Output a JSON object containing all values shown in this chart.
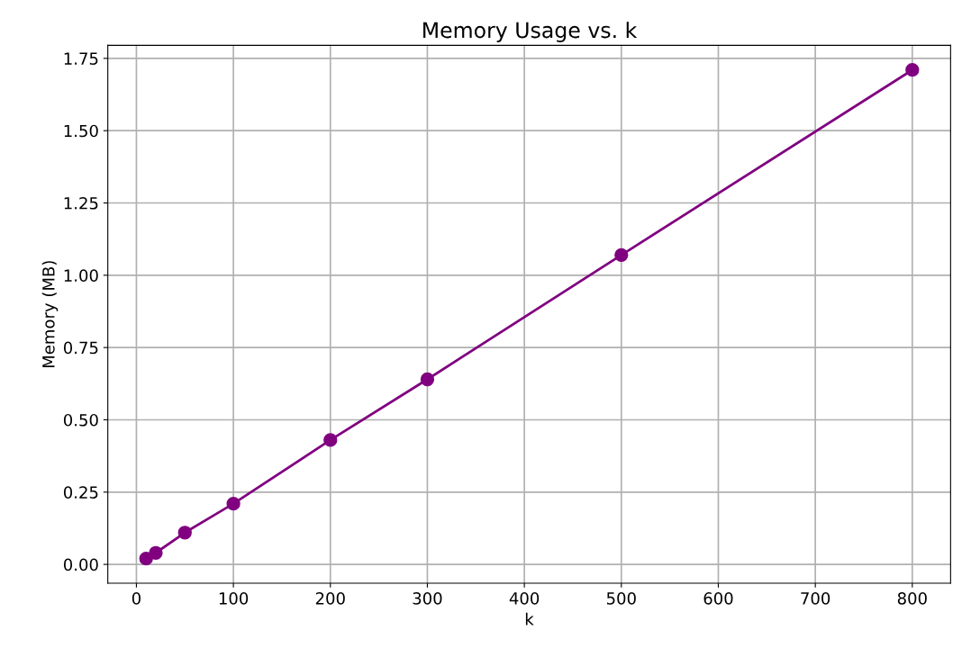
{
  "chart_data": {
    "type": "line",
    "title": "Memory Usage vs. k",
    "xlabel": "k",
    "ylabel": "Memory (MB)",
    "x": [
      10,
      20,
      50,
      100,
      200,
      300,
      500,
      800
    ],
    "series": [
      {
        "color": "#800080",
        "values": [
          0.02,
          0.04,
          0.11,
          0.21,
          0.43,
          0.64,
          1.07,
          1.71
        ]
      }
    ],
    "xlim": [
      -29.5,
      839.5
    ],
    "xticks": [
      0,
      100,
      200,
      300,
      400,
      500,
      600,
      700,
      800
    ],
    "ylim": [
      -0.065,
      1.795
    ],
    "yticks": [
      {
        "value": 0,
        "label": "0.00"
      },
      {
        "value": 0.25,
        "label": "0.25"
      },
      {
        "value": 0.5,
        "label": "0.50"
      },
      {
        "value": 0.75,
        "label": "0.75"
      },
      {
        "value": 1,
        "label": "1.00"
      },
      {
        "value": 1.25,
        "label": "1.25"
      },
      {
        "value": 1.5,
        "label": "1.50"
      },
      {
        "value": 1.75,
        "label": "1.75"
      }
    ],
    "grid": true,
    "marker": "circle",
    "line_style": "solid"
  }
}
